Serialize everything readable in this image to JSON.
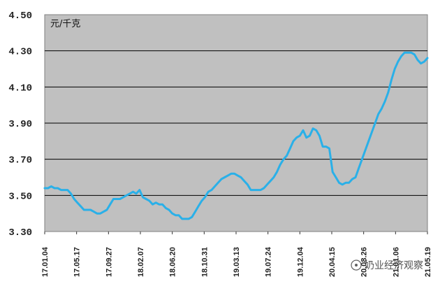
{
  "chart_data": {
    "type": "line",
    "title": "",
    "unit_label": "元/千克",
    "xlabel": "",
    "ylabel": "",
    "ylim": [
      3.3,
      4.5
    ],
    "y_ticks": [
      "3.30",
      "3.50",
      "3.70",
      "3.90",
      "4.10",
      "4.30",
      "4.50"
    ],
    "x_ticks": [
      "17.01.04",
      "17.05.17",
      "17.09.27",
      "18.02.07",
      "18.06.20",
      "18.10.31",
      "19.03.13",
      "19.07.24",
      "19.12.04",
      "20.04.15",
      "20.08.26",
      "21.01.06",
      "21.05.19"
    ],
    "grid": true,
    "legend": "none",
    "colors": {
      "line": "#2ab0e8",
      "plot_background": "#c0c0c0",
      "gridline": "#000000"
    },
    "series": [
      {
        "values": [
          3.54,
          3.54,
          3.55,
          3.54,
          3.54,
          3.53,
          3.53,
          3.53,
          3.51,
          3.48,
          3.46,
          3.44,
          3.42,
          3.42,
          3.42,
          3.41,
          3.4,
          3.4,
          3.41,
          3.42,
          3.45,
          3.48,
          3.48,
          3.48,
          3.49,
          3.5,
          3.51,
          3.52,
          3.51,
          3.53,
          3.49,
          3.48,
          3.47,
          3.45,
          3.46,
          3.45,
          3.45,
          3.43,
          3.42,
          3.4,
          3.39,
          3.39,
          3.37,
          3.37,
          3.37,
          3.38,
          3.41,
          3.44,
          3.47,
          3.49,
          3.52,
          3.53,
          3.55,
          3.57,
          3.59,
          3.6,
          3.61,
          3.62,
          3.62,
          3.61,
          3.6,
          3.58,
          3.56,
          3.53,
          3.53,
          3.53,
          3.53,
          3.54,
          3.56,
          3.58,
          3.6,
          3.63,
          3.67,
          3.7,
          3.72,
          3.76,
          3.8,
          3.82,
          3.83,
          3.86,
          3.82,
          3.83,
          3.87,
          3.86,
          3.83,
          3.77,
          3.77,
          3.76,
          3.63,
          3.6,
          3.57,
          3.56,
          3.57,
          3.57,
          3.59,
          3.6,
          3.65,
          3.7,
          3.75,
          3.8,
          3.85,
          3.9,
          3.95,
          3.98,
          4.02,
          4.07,
          4.14,
          4.2,
          4.24,
          4.27,
          4.29,
          4.29,
          4.29,
          4.28,
          4.25,
          4.23,
          4.24,
          4.26
        ]
      }
    ],
    "watermark": "奶业经济观察"
  }
}
